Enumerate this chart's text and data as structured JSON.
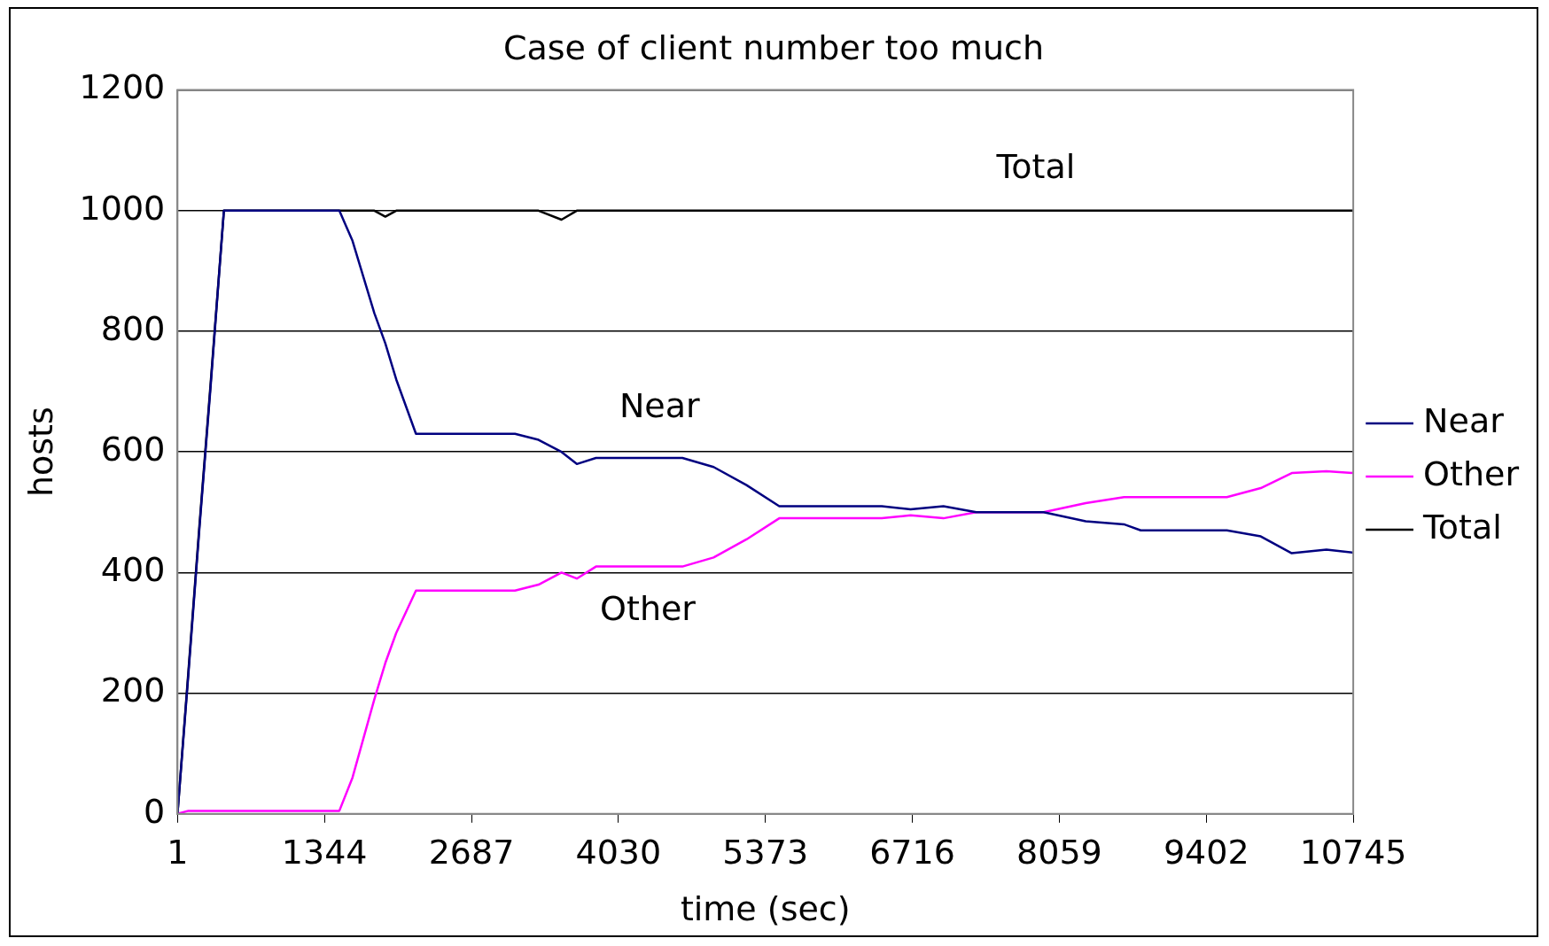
{
  "chart_data": {
    "type": "line",
    "title": "Case of client number too much",
    "xlabel": "time (sec)",
    "ylabel": "hosts",
    "x": [
      1,
      100,
      200,
      300,
      425,
      800,
      1200,
      1480,
      1600,
      1800,
      1900,
      2000,
      2180,
      2600,
      3085,
      3300,
      3510,
      3650,
      3825,
      4200,
      4615,
      4900,
      5200,
      5500,
      6000,
      6437,
      6700,
      7000,
      7300,
      7915,
      8300,
      8650,
      8803,
      9200,
      9590,
      9900,
      10183,
      10500,
      10745
    ],
    "series": [
      {
        "name": "Near",
        "color": "#000080",
        "values": [
          0,
          230,
          470,
          700,
          1000,
          1000,
          1000,
          1000,
          950,
          830,
          780,
          720,
          630,
          630,
          630,
          620,
          600,
          580,
          590,
          590,
          590,
          575,
          545,
          510,
          510,
          510,
          505,
          510,
          500,
          500,
          485,
          480,
          470,
          470,
          470,
          460,
          432,
          438,
          433
        ]
      },
      {
        "name": "Other",
        "color": "#ff00ff",
        "values": [
          0,
          5,
          5,
          5,
          5,
          5,
          5,
          5,
          60,
          190,
          250,
          300,
          370,
          370,
          370,
          380,
          400,
          390,
          410,
          410,
          410,
          425,
          455,
          490,
          490,
          490,
          495,
          490,
          500,
          500,
          515,
          525,
          525,
          525,
          525,
          540,
          565,
          568,
          565
        ]
      },
      {
        "name": "Total",
        "color": "#000000",
        "values": [
          0,
          235,
          475,
          705,
          1000,
          1000,
          1000,
          1000,
          1000,
          1000,
          990,
          1000,
          1000,
          1000,
          1000,
          1000,
          985,
          1000,
          1000,
          1000,
          1000,
          1000,
          1000,
          1000,
          1000,
          1000,
          1000,
          1000,
          1000,
          1000,
          1000,
          1000,
          1000,
          1000,
          1000,
          1000,
          1000,
          1000,
          1000
        ]
      }
    ],
    "xlim": [
      1,
      10745
    ],
    "xticks": [
      1,
      1344,
      2687,
      4030,
      5373,
      6716,
      8059,
      9402,
      10745
    ],
    "ylim": [
      0,
      1200
    ],
    "yticks": [
      0,
      200,
      400,
      600,
      800,
      1000,
      1200
    ],
    "grid": "y",
    "legend": "right",
    "marker": "none",
    "line_style": "solid",
    "annotations": [
      "Total",
      "Near",
      "Other"
    ]
  }
}
